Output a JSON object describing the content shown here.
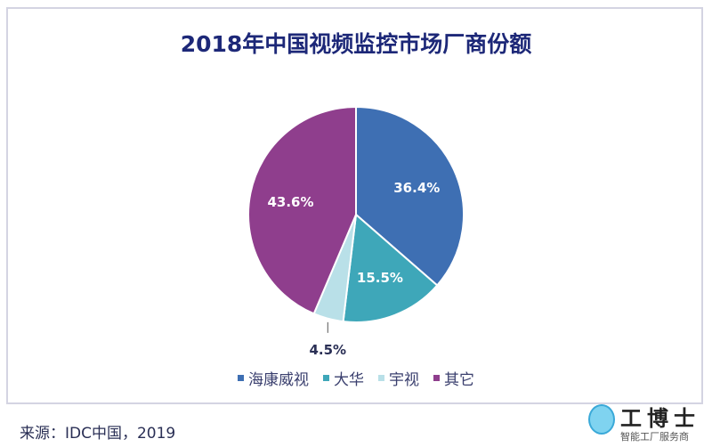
{
  "chart_data": {
    "type": "pie",
    "title": "2018年中国视频监控市场厂商份额",
    "slices": [
      {
        "label": "海康威视",
        "value": 36.4,
        "display": "36.4%",
        "color": "#3e6fb3"
      },
      {
        "label": "大华",
        "value": 15.5,
        "display": "15.5%",
        "color": "#3ea7b9"
      },
      {
        "label": "宇视",
        "value": 4.5,
        "display": "4.5%",
        "color": "#b9e0e8"
      },
      {
        "label": "其它",
        "value": 43.6,
        "display": "43.6%",
        "color": "#8f3e8d"
      }
    ],
    "start": "top",
    "direction": "clockwise",
    "legend_position": "bottom"
  },
  "source": "来源：IDC中国，2019",
  "watermark": {
    "brand": "工博士",
    "tagline": "智能工厂服务商"
  }
}
